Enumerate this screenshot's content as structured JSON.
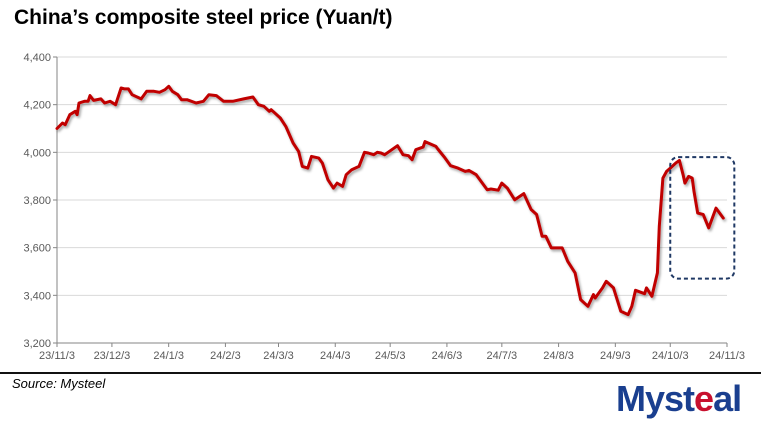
{
  "chart_data": {
    "type": "line",
    "title": "China’s composite steel price (Yuan/t)",
    "xlabel": "",
    "ylabel": "",
    "ylim": [
      3200,
      4400
    ],
    "yticks": [
      "4,400",
      "4,200",
      "4,000",
      "3,800",
      "3,600",
      "3,400",
      "3,200"
    ],
    "ytick_values": [
      4400,
      4200,
      4000,
      3800,
      3600,
      3400,
      3200
    ],
    "xticks": [
      "23/11/3",
      "23/12/3",
      "24/1/3",
      "24/2/3",
      "24/3/3",
      "24/4/3",
      "24/5/3",
      "24/6/3",
      "24/7/3",
      "24/8/3",
      "24/9/3",
      "24/10/3",
      "24/11/3"
    ],
    "xtick_days": [
      0,
      30,
      61,
      92,
      121,
      152,
      182,
      213,
      243,
      274,
      305,
      335,
      366
    ],
    "x_unit": "days since 2023-11-03",
    "grid": true,
    "series": [
      {
        "name": "Composite steel price",
        "color": "#C00000",
        "points": [
          [
            0,
            4100
          ],
          [
            3,
            4123
          ],
          [
            4.5,
            4116
          ],
          [
            7,
            4158
          ],
          [
            10,
            4172
          ],
          [
            11,
            4158
          ],
          [
            12,
            4207
          ],
          [
            15,
            4214
          ],
          [
            17,
            4214
          ],
          [
            18,
            4238
          ],
          [
            20,
            4218
          ],
          [
            24,
            4224
          ],
          [
            26,
            4207
          ],
          [
            29,
            4214
          ],
          [
            32,
            4200
          ],
          [
            35,
            4270
          ],
          [
            37,
            4266
          ],
          [
            39,
            4266
          ],
          [
            41,
            4242
          ],
          [
            46,
            4224
          ],
          [
            49,
            4256
          ],
          [
            53,
            4256
          ],
          [
            56,
            4252
          ],
          [
            59,
            4263
          ],
          [
            61,
            4277
          ],
          [
            63,
            4256
          ],
          [
            66,
            4242
          ],
          [
            68,
            4221
          ],
          [
            71,
            4221
          ],
          [
            76,
            4207
          ],
          [
            80,
            4214
          ],
          [
            83,
            4242
          ],
          [
            87,
            4238
          ],
          [
            91,
            4214
          ],
          [
            96,
            4214
          ],
          [
            102,
            4224
          ],
          [
            107,
            4232
          ],
          [
            110,
            4200
          ],
          [
            113,
            4193
          ],
          [
            116,
            4172
          ],
          [
            117,
            4179
          ],
          [
            122,
            4144
          ],
          [
            125,
            4109
          ],
          [
            129,
            4039
          ],
          [
            132,
            4004
          ],
          [
            134,
            3941
          ],
          [
            137,
            3934
          ],
          [
            139,
            3983
          ],
          [
            143,
            3976
          ],
          [
            145,
            3955
          ],
          [
            148,
            3885
          ],
          [
            151,
            3850
          ],
          [
            153,
            3871
          ],
          [
            156,
            3857
          ],
          [
            158,
            3906
          ],
          [
            161,
            3927
          ],
          [
            165,
            3941
          ],
          [
            168,
            4000
          ],
          [
            170,
            3997
          ],
          [
            173,
            3990
          ],
          [
            175,
            4000
          ],
          [
            177,
            3997
          ],
          [
            179,
            3990
          ],
          [
            186,
            4028
          ],
          [
            189,
            3990
          ],
          [
            192,
            3986
          ],
          [
            194,
            3969
          ],
          [
            196,
            4011
          ],
          [
            200,
            4022
          ],
          [
            201,
            4045
          ],
          [
            207,
            4025
          ],
          [
            208,
            4014
          ],
          [
            212,
            3976
          ],
          [
            215,
            3944
          ],
          [
            219,
            3934
          ],
          [
            223,
            3920
          ],
          [
            225,
            3924
          ],
          [
            229,
            3906
          ],
          [
            235,
            3843
          ],
          [
            237,
            3846
          ],
          [
            241,
            3841
          ],
          [
            243,
            3871
          ],
          [
            246,
            3850
          ],
          [
            250,
            3801
          ],
          [
            255,
            3827
          ],
          [
            259,
            3760
          ],
          [
            262,
            3739
          ],
          [
            265,
            3648
          ],
          [
            267,
            3648
          ],
          [
            270,
            3599
          ],
          [
            276,
            3599
          ],
          [
            279,
            3543
          ],
          [
            283,
            3494
          ],
          [
            286,
            3382
          ],
          [
            290,
            3354
          ],
          [
            293,
            3403
          ],
          [
            294,
            3389
          ],
          [
            298,
            3431
          ],
          [
            300,
            3459
          ],
          [
            304,
            3431
          ],
          [
            308,
            3333
          ],
          [
            312,
            3319
          ],
          [
            314,
            3354
          ],
          [
            316,
            3421
          ],
          [
            321,
            3407
          ],
          [
            322,
            3431
          ],
          [
            325,
            3396
          ],
          [
            328,
            3494
          ],
          [
            329,
            3690
          ],
          [
            331,
            3892
          ],
          [
            333,
            3920
          ],
          [
            335,
            3934
          ],
          [
            338,
            3955
          ],
          [
            340,
            3966
          ],
          [
            342,
            3906
          ],
          [
            343,
            3871
          ],
          [
            345,
            3899
          ],
          [
            347,
            3892
          ],
          [
            348,
            3836
          ],
          [
            350,
            3745
          ],
          [
            353,
            3739
          ],
          [
            356,
            3683
          ],
          [
            360,
            3766
          ],
          [
            364,
            3724
          ]
        ]
      }
    ],
    "annotation": {
      "type": "dashed-box",
      "color": "#1F3864",
      "x_range_days": [
        335,
        370
      ],
      "y_range": [
        3470,
        3980
      ]
    }
  },
  "source": "Source: Mysteel",
  "logo": {
    "part1": "Myst",
    "part2": "e",
    "part3": "al",
    "text": "Mysteal"
  }
}
